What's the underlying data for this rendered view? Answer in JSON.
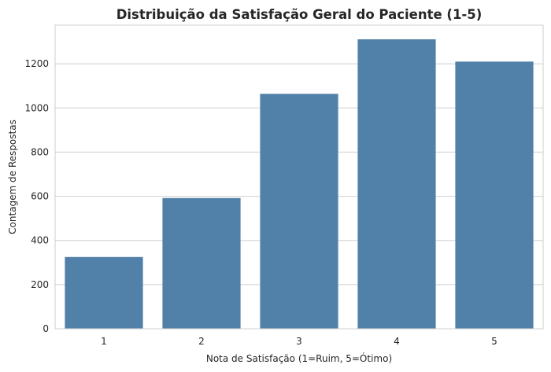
{
  "chart_data": {
    "type": "bar",
    "title": "Distribuição da Satisfação Geral do Paciente (1-5)",
    "xlabel": "Nota de Satisfação (1=Ruim, 5=Ótimo)",
    "ylabel": "Contagem de Respostas",
    "categories": [
      "1",
      "2",
      "3",
      "4",
      "5"
    ],
    "values": [
      325,
      592,
      1064,
      1311,
      1210
    ],
    "ylim": [
      0,
      1375
    ],
    "yticks": [
      0,
      200,
      400,
      600,
      800,
      1000,
      1200
    ],
    "grid": true,
    "legend": "none",
    "colors": {
      "bar": "#5181a8",
      "grid": "#cfcfcf",
      "text": "#262626"
    }
  }
}
